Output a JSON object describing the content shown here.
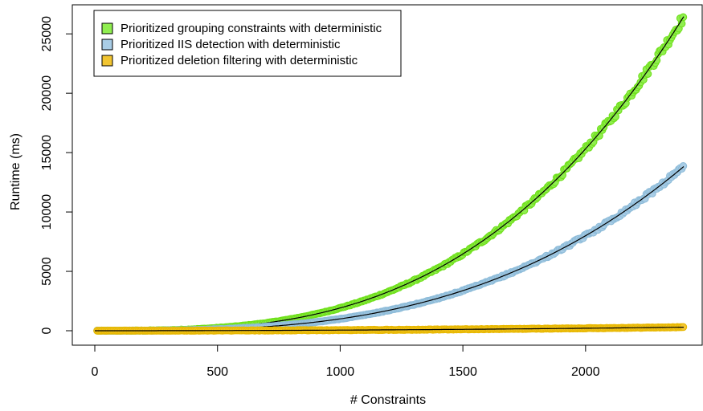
{
  "chart_data": {
    "type": "scatter",
    "xlabel": "# Constraints",
    "ylabel": "Runtime (ms)",
    "xlim": [
      0,
      2400
    ],
    "ylim": [
      0,
      26500
    ],
    "x_ticks": [
      0,
      500,
      1000,
      1500,
      2000
    ],
    "y_ticks": [
      0,
      5000,
      10000,
      15000,
      20000,
      25000
    ],
    "x_tick_labels": [
      "0",
      "500",
      "1000",
      "1500",
      "2000"
    ],
    "y_tick_labels": [
      "0",
      "5000",
      "10000",
      "15000",
      "20000",
      "25000"
    ],
    "grid": false,
    "legend_position": "top-left",
    "series": [
      {
        "name": "Prioritized grouping constraints with deterministic",
        "color": "#6FE01A",
        "fill": "#90EE50",
        "x": [
          0,
          100,
          200,
          300,
          400,
          500,
          600,
          700,
          800,
          900,
          1000,
          1100,
          1200,
          1300,
          1400,
          1500,
          1600,
          1700,
          1800,
          1900,
          2000,
          2100,
          2200,
          2300,
          2400
        ],
        "y": [
          0,
          2,
          15,
          52,
          122,
          240,
          414,
          657,
          981,
          1397,
          1916,
          2551,
          3312,
          4210,
          5257,
          6466,
          7847,
          9412,
          11172,
          13138,
          15325,
          17739,
          20391,
          23296,
          26455
        ]
      },
      {
        "name": "Prioritized IIS detection with deterministic",
        "color": "#8EBCD9",
        "fill": "#A9CDE6",
        "x": [
          0,
          100,
          200,
          300,
          400,
          500,
          600,
          700,
          800,
          900,
          1000,
          1100,
          1200,
          1300,
          1400,
          1500,
          1600,
          1700,
          1800,
          1900,
          2000,
          2100,
          2200,
          2300,
          2400
        ],
        "y": [
          0,
          1,
          8,
          27,
          64,
          125,
          216,
          343,
          512,
          729,
          1000,
          1331,
          1728,
          2197,
          2744,
          3375,
          4096,
          4913,
          5832,
          6859,
          8000,
          9261,
          10648,
          12167,
          13824
        ]
      },
      {
        "name": "Prioritized deletion filtering with deterministic",
        "color": "#E8B800",
        "fill": "#F2C531",
        "x": [
          0,
          100,
          200,
          300,
          400,
          500,
          600,
          700,
          800,
          900,
          1000,
          1100,
          1200,
          1300,
          1400,
          1500,
          1600,
          1700,
          1800,
          1900,
          2000,
          2100,
          2200,
          2300,
          2400
        ],
        "y": [
          0,
          1,
          2,
          5,
          9,
          13,
          19,
          26,
          33,
          42,
          52,
          63,
          75,
          88,
          102,
          117,
          133,
          150,
          169,
          188,
          208,
          230,
          252,
          275,
          300
        ]
      }
    ],
    "fit_line_color": "#000000"
  }
}
